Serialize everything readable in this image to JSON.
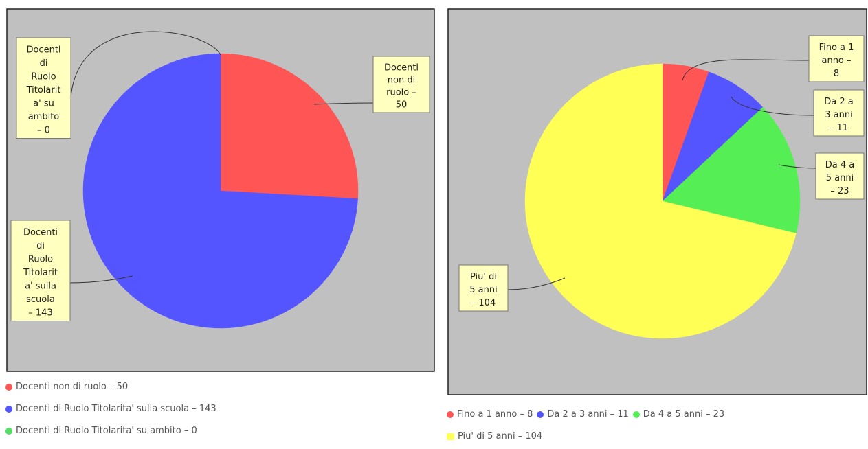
{
  "chart_data": [
    {
      "type": "pie",
      "slices": [
        {
          "label": "Docenti non di ruolo",
          "value": 50,
          "color": "#ff5555"
        },
        {
          "label": "Docenti di Ruolo Titolarita' sulla scuola",
          "value": 143,
          "color": "#5555ff"
        },
        {
          "label": "Docenti di Ruolo Titolarita' su ambito",
          "value": 0,
          "color": "#55dd66"
        }
      ],
      "callouts": [
        [
          "Docenti",
          "non di",
          "ruolo –",
          "50"
        ],
        [
          "Docenti",
          "di",
          "Ruolo",
          "Titolarit",
          "a' sulla",
          "scuola",
          "– 143"
        ],
        [
          "Docenti",
          "di",
          "Ruolo",
          "Titolarit",
          "a' su",
          "ambito",
          "– 0"
        ]
      ],
      "legend": [
        "Docenti non di ruolo – 50",
        "Docenti di Ruolo Titolarita' sulla scuola – 143",
        "Docenti di Ruolo Titolarita' su ambito – 0"
      ],
      "legend_placement": "bottom"
    },
    {
      "type": "pie",
      "slices": [
        {
          "label": "Fino a 1 anno",
          "value": 8,
          "color": "#ff5555"
        },
        {
          "label": "Da 2 a 3 anni",
          "value": 11,
          "color": "#5555ff"
        },
        {
          "label": "Da 4 a 5 anni",
          "value": 23,
          "color": "#55ee55"
        },
        {
          "label": "Piu' di 5 anni",
          "value": 104,
          "color": "#ffff55"
        }
      ],
      "callouts": [
        [
          "Fino a 1",
          "anno –",
          "8"
        ],
        [
          "Da 2 a",
          "3 anni",
          "– 11"
        ],
        [
          "Da 4 a",
          "5 anni",
          "– 23"
        ],
        [
          "Piu' di",
          "5 anni",
          "– 104"
        ]
      ],
      "legend": [
        "Fino a 1 anno – 8",
        "Da 2 a 3 anni – 11",
        "Da 4 a 5 anni – 23",
        "Piu' di 5 anni – 104"
      ],
      "legend_placement": "bottom"
    }
  ],
  "colors": {
    "plot_bg": "#c0c0c0",
    "callout_bg": "#ffffc0",
    "legend_text": "#555555"
  }
}
